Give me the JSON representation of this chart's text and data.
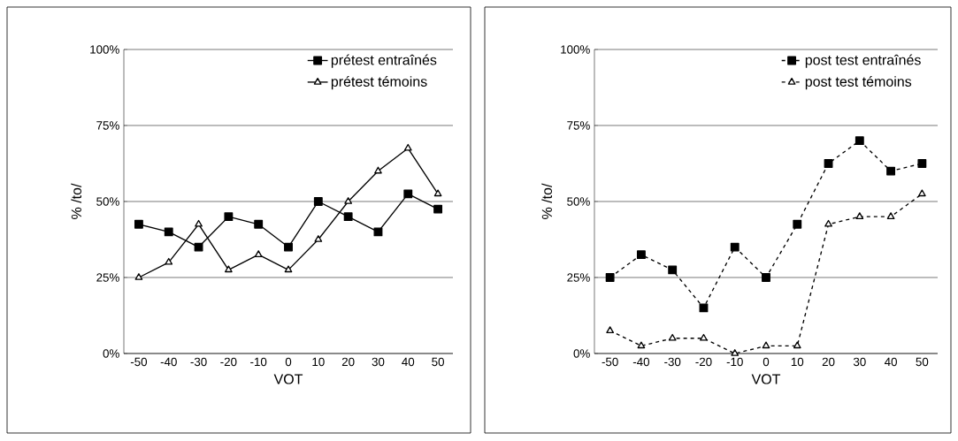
{
  "chart_data": [
    {
      "type": "line",
      "xlabel": "VOT",
      "ylabel": "% /to/",
      "categories": [
        "-50",
        "-40",
        "-30",
        "-20",
        "-10",
        "0",
        "10",
        "20",
        "30",
        "40",
        "50"
      ],
      "series": [
        {
          "name": "prétest entraînés",
          "color": "#000000",
          "marker": "square",
          "values": [
            42.5,
            40,
            35,
            45,
            42.5,
            35,
            50,
            45,
            40,
            52.5,
            47.5
          ]
        },
        {
          "name": "prétest témoins",
          "color": "#000000",
          "marker": "triangle",
          "values": [
            25,
            30,
            42.5,
            27.5,
            32.5,
            27.5,
            37.5,
            50,
            60,
            67.5,
            52.5
          ]
        }
      ],
      "ylim": [
        0,
        100
      ],
      "yticks": [
        {
          "value": 0,
          "label": "0%"
        },
        {
          "value": 25,
          "label": "25%"
        },
        {
          "value": 50,
          "label": "50%"
        },
        {
          "value": 75,
          "label": "75%"
        },
        {
          "value": 100,
          "label": "100%"
        }
      ],
      "grid": "y",
      "legend": "top right",
      "line_style": "solid"
    },
    {
      "type": "line",
      "xlabel": "VOT",
      "ylabel": "% /to/",
      "categories": [
        "-50",
        "-40",
        "-30",
        "-20",
        "-10",
        "0",
        "10",
        "20",
        "30",
        "40",
        "50"
      ],
      "series": [
        {
          "name": "post test entraînés",
          "color": "#000000",
          "marker": "square",
          "values": [
            25,
            32.5,
            27.5,
            15,
            35,
            25,
            42.5,
            62.5,
            70,
            60,
            62.5
          ]
        },
        {
          "name": "post test témoins",
          "color": "#000000",
          "marker": "triangle",
          "values": [
            7.5,
            2.5,
            5,
            5,
            0,
            2.5,
            2.5,
            42.5,
            45,
            45,
            52.5
          ]
        }
      ],
      "ylim": [
        0,
        100
      ],
      "yticks": [
        {
          "value": 0,
          "label": "0%"
        },
        {
          "value": 25,
          "label": "25%"
        },
        {
          "value": 50,
          "label": "50%"
        },
        {
          "value": 75,
          "label": "75%"
        },
        {
          "value": 100,
          "label": "100%"
        }
      ],
      "grid": "y",
      "legend": "top right",
      "line_style": "dashed"
    }
  ]
}
